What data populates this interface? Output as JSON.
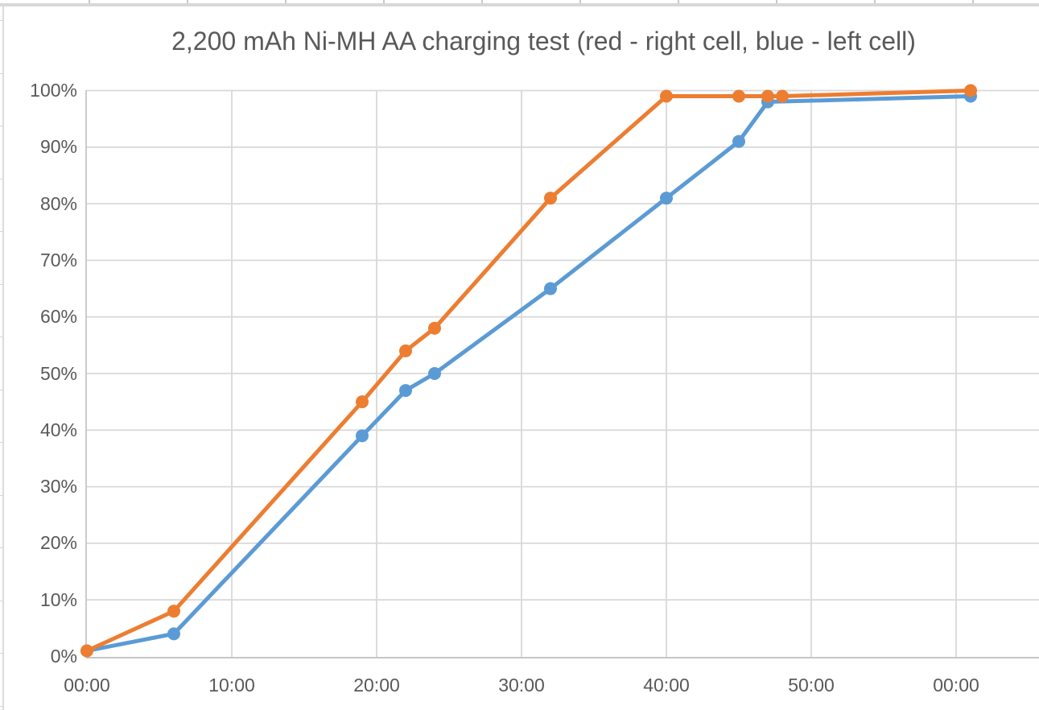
{
  "chart_data": {
    "type": "line",
    "title": "2,200 mAh Ni-MH AA charging test (red - right cell, blue - left cell)",
    "xlabel": "",
    "ylabel": "",
    "grid": true,
    "legend_position": "none",
    "x_axis": {
      "unit": "elapsed time mm:ss (wraps after one hour)",
      "tick_positions_minutes": [
        0,
        10,
        20,
        30,
        40,
        50,
        60
      ],
      "tick_labels": [
        "00:00",
        "10:00",
        "20:00",
        "30:00",
        "40:00",
        "50:00",
        "00:00"
      ],
      "range_minutes": [
        0,
        65.7
      ]
    },
    "y_axis": {
      "format": "percent",
      "tick_positions": [
        0,
        10,
        20,
        30,
        40,
        50,
        60,
        70,
        80,
        90,
        100
      ],
      "tick_labels": [
        "0%",
        "10%",
        "20%",
        "30%",
        "40%",
        "50%",
        "60%",
        "70%",
        "80%",
        "90%",
        "100%"
      ],
      "range": [
        0,
        100
      ]
    },
    "series": [
      {
        "name": "left cell (blue)",
        "color": "#5B9BD5",
        "marker": "circle",
        "points_min_pct": [
          [
            0,
            1
          ],
          [
            6,
            4
          ],
          [
            19,
            39
          ],
          [
            22,
            47
          ],
          [
            24,
            50
          ],
          [
            32,
            65
          ],
          [
            40,
            81
          ],
          [
            45,
            91
          ],
          [
            47,
            98
          ],
          [
            61,
            99
          ]
        ]
      },
      {
        "name": "right cell (red)",
        "color": "#ED7D31",
        "marker": "circle",
        "points_min_pct": [
          [
            0,
            1
          ],
          [
            6,
            8
          ],
          [
            19,
            45
          ],
          [
            22,
            54
          ],
          [
            24,
            58
          ],
          [
            32,
            81
          ],
          [
            40,
            99
          ],
          [
            45,
            99
          ],
          [
            47,
            99
          ],
          [
            48,
            99
          ],
          [
            61,
            100
          ]
        ]
      }
    ]
  },
  "colors": {
    "title_text": "#595959",
    "axis_label_text": "#595959",
    "gridline": "#d9d9d9",
    "axis_line": "#c6c6c6",
    "series_blue": "#5B9BD5",
    "series_orange": "#ED7D31",
    "background": "#ffffff"
  }
}
